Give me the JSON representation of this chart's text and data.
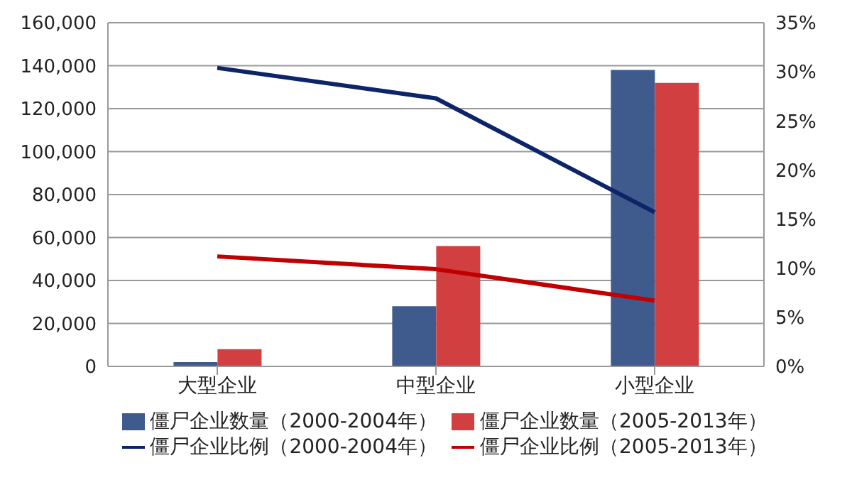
{
  "chart_data": {
    "type": "bar",
    "categories": [
      "大型企业",
      "中型企业",
      "小型企业"
    ],
    "series": [
      {
        "name": "僵尸企业数量（2000-2004年）",
        "color": "#3f5a8c",
        "values": [
          2000,
          28000,
          138000
        ]
      },
      {
        "name": "僵尸企业数量（2005-2013年）",
        "color": "#d13f41",
        "values": [
          8000,
          56000,
          132000
        ]
      },
      {
        "name": "僵尸企业比例（2000-2004年）",
        "type": "line",
        "axis": "y2",
        "color": "#0d2469",
        "values": [
          30.4,
          27.3,
          15.7
        ]
      },
      {
        "name": "僵尸企业比例（2005-2013年）",
        "type": "line",
        "axis": "y2",
        "color": "#c00000",
        "values": [
          11.2,
          9.9,
          6.7
        ]
      }
    ],
    "ylim": [
      0,
      160000
    ],
    "yticks": [
      0,
      {
        "value": 20000,
        "label": "20,000"
      },
      {
        "value": 40000,
        "label": "40,000"
      },
      {
        "value": 60000,
        "label": "60,000"
      },
      {
        "value": 80000,
        "label": "80,000"
      },
      {
        "value": 100000,
        "label": "100,000"
      },
      {
        "value": 120000,
        "label": "120,000"
      },
      {
        "value": 140000,
        "label": "140,000"
      },
      {
        "value": 160000,
        "label": "160,000"
      }
    ],
    "y2lim": [
      0,
      35
    ],
    "y2ticks": [
      {
        "value": 0,
        "label": "0%"
      },
      {
        "value": 5,
        "label": "5%"
      },
      {
        "value": 10,
        "label": "10%"
      },
      {
        "value": 15,
        "label": "15%"
      },
      {
        "value": 20,
        "label": "20%"
      },
      {
        "value": 25,
        "label": "25%"
      },
      {
        "value": 30,
        "label": "30%"
      },
      {
        "value": 35,
        "label": "35%"
      }
    ],
    "grid": "y",
    "legend": "bottom",
    "marker": "none"
  }
}
